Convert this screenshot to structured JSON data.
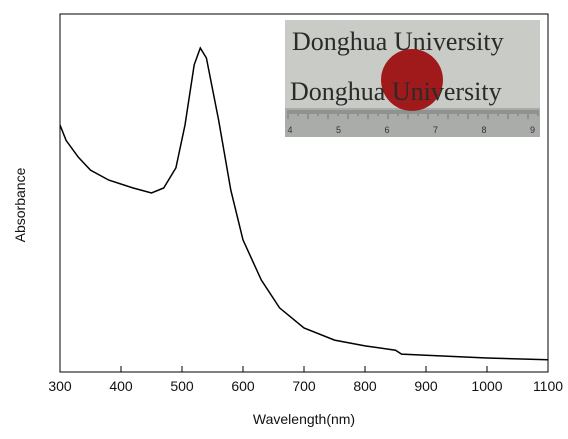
{
  "chart_data": {
    "type": "line",
    "x_label": "Wavelength(nm)",
    "y_label": "Absorbance",
    "x": [
      300,
      310,
      330,
      350,
      380,
      420,
      450,
      470,
      490,
      505,
      520,
      530,
      540,
      560,
      580,
      600,
      630,
      660,
      700,
      750,
      800,
      850,
      860,
      900,
      1000,
      1100
    ],
    "series": [
      {
        "color": "#000000",
        "values": [
          0.69,
          0.647,
          0.6,
          0.564,
          0.536,
          0.514,
          0.5,
          0.514,
          0.57,
          0.69,
          0.858,
          0.905,
          0.877,
          0.704,
          0.508,
          0.369,
          0.257,
          0.179,
          0.123,
          0.089,
          0.073,
          0.061,
          0.05,
          0.047,
          0.039,
          0.034
        ]
      }
    ],
    "xlim": [
      300,
      1100
    ],
    "xticks": [
      300,
      400,
      500,
      600,
      700,
      800,
      900,
      1000,
      1100
    ],
    "ylim": [
      0,
      1
    ],
    "grid": false
  },
  "inset": {
    "lines": [
      "Donghua University",
      "Donghua University"
    ],
    "ruler_labels": [
      "4",
      "5",
      "6",
      "7",
      "8",
      "9"
    ]
  }
}
